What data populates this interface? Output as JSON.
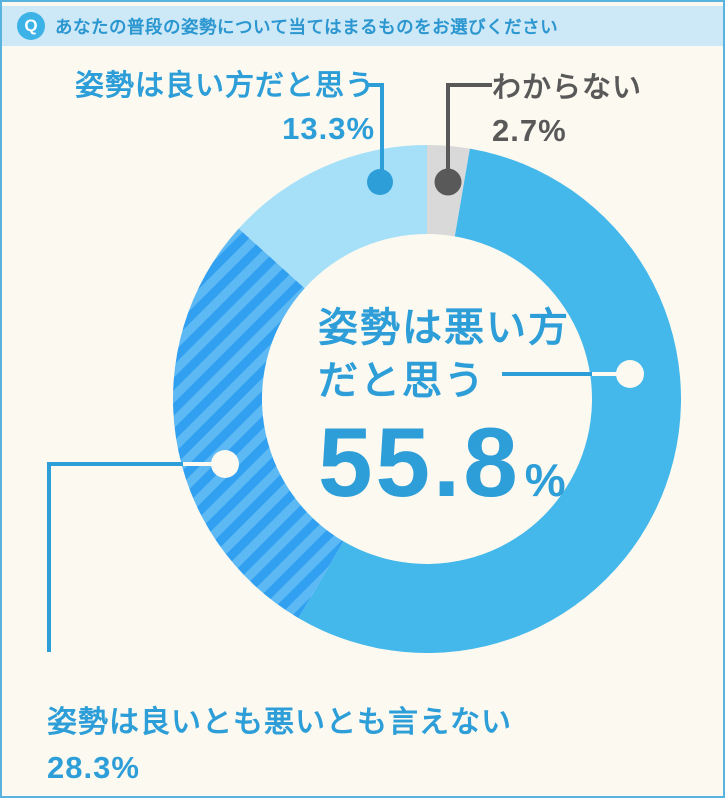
{
  "page": {
    "background": "#fcf9f0",
    "border_color": "#58b3de"
  },
  "header": {
    "badge": "Q",
    "title": "あなたの普段の姿勢について当てはまるものをお選びください",
    "bg": "#cde9f7",
    "text_color": "#2b96cf",
    "badge_color": "#3cb2e6"
  },
  "chart_data": {
    "type": "pie",
    "subtype": "donut",
    "title": "あなたの普段の姿勢について当てはまるものをお選びください",
    "hole_ratio": 0.65,
    "start_angle_clockwise_from_top_deg": 0,
    "slices": [
      {
        "label": "わからない",
        "value": 2.7,
        "display": "2.7%",
        "color": "#d9d9d9",
        "pattern": "solid"
      },
      {
        "label": "姿勢は悪い方だと思う",
        "value": 55.8,
        "display": "55.8%",
        "color": "#44b8ea",
        "pattern": "solid"
      },
      {
        "label": "姿勢は良いとも悪いとも言えない",
        "value": 28.3,
        "display": "28.3%",
        "color": "#31a0f0",
        "pattern": "diagonal_stripes",
        "stripe_color": "#5db9f4"
      },
      {
        "label": "姿勢は良い方だと思う",
        "value": 13.3,
        "display": "13.3%",
        "color": "#a6e0f8",
        "pattern": "solid"
      }
    ],
    "legend_position": "callouts"
  },
  "labels": {
    "good": {
      "text": "姿勢は良い方だと思う",
      "value": "13.3%"
    },
    "unknown": {
      "text": "わからない",
      "value": "2.7%"
    },
    "bad": {
      "line1": "姿勢は悪い方",
      "line2": "だと思う",
      "value": "55.8",
      "unit": "%"
    },
    "neither": {
      "text": "姿勢は良いとも悪いとも言えない",
      "value": "28.3%"
    }
  },
  "colors": {
    "accent_text": "#2d9ed8",
    "dark_text": "#595959",
    "callout_white": "#fcf9f0"
  }
}
